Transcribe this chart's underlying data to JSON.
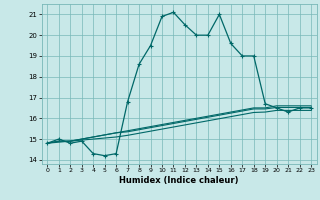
{
  "title": "",
  "xlabel": "Humidex (Indice chaleur)",
  "x_values": [
    0,
    1,
    2,
    3,
    4,
    5,
    6,
    7,
    8,
    9,
    10,
    11,
    12,
    13,
    14,
    15,
    16,
    17,
    18,
    19,
    20,
    21,
    22,
    23
  ],
  "line1_y": [
    14.8,
    15.0,
    14.8,
    14.9,
    14.3,
    14.2,
    14.3,
    16.8,
    18.6,
    19.5,
    20.9,
    21.1,
    20.5,
    20.0,
    20.0,
    21.0,
    19.6,
    19.0,
    19.0,
    16.7,
    16.5,
    16.3,
    16.5,
    16.5
  ],
  "line2_y": [
    14.8,
    14.9,
    14.9,
    15.0,
    15.1,
    15.2,
    15.3,
    15.4,
    15.5,
    15.6,
    15.7,
    15.8,
    15.9,
    16.0,
    16.1,
    16.2,
    16.3,
    16.4,
    16.5,
    16.5,
    16.6,
    16.6,
    16.6,
    16.6
  ],
  "line3_y": [
    14.8,
    14.9,
    14.9,
    15.0,
    15.1,
    15.2,
    15.3,
    15.35,
    15.45,
    15.55,
    15.65,
    15.75,
    15.85,
    15.95,
    16.05,
    16.15,
    16.25,
    16.35,
    16.45,
    16.45,
    16.52,
    16.52,
    16.52,
    16.52
  ],
  "line4_y": [
    14.8,
    14.85,
    14.9,
    14.95,
    15.0,
    15.05,
    15.1,
    15.18,
    15.28,
    15.38,
    15.48,
    15.58,
    15.68,
    15.78,
    15.88,
    15.98,
    16.08,
    16.18,
    16.28,
    16.3,
    16.38,
    16.38,
    16.38,
    16.38
  ],
  "bg_color": "#c8e8e8",
  "grid_color": "#78b8b8",
  "line_color": "#006868",
  "marker": "+",
  "ylim": [
    13.8,
    21.5
  ],
  "yticks": [
    14,
    15,
    16,
    17,
    18,
    19,
    20,
    21
  ],
  "xticks": [
    0,
    1,
    2,
    3,
    4,
    5,
    6,
    7,
    8,
    9,
    10,
    11,
    12,
    13,
    14,
    15,
    16,
    17,
    18,
    19,
    20,
    21,
    22,
    23
  ],
  "xlim": [
    -0.5,
    23.5
  ]
}
